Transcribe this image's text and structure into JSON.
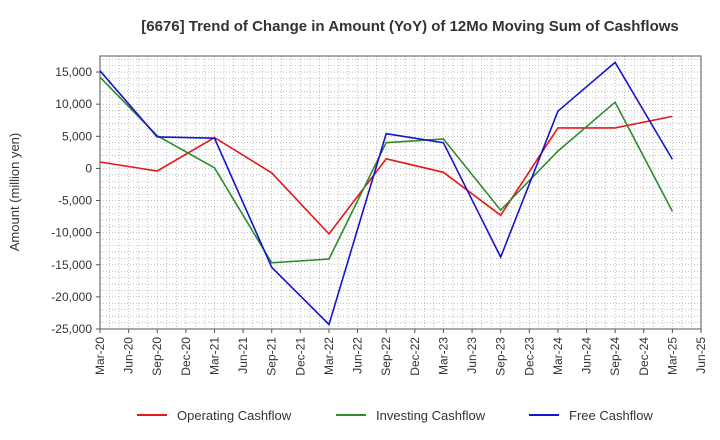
{
  "chart_data": {
    "type": "line",
    "title": "[6676]  Trend of Change in Amount (YoY) of 12Mo Moving Sum of Cashflows",
    "xlabel": "",
    "ylabel": "Amount (million yen)",
    "ylim": [
      -25000,
      17500
    ],
    "yticks": [
      15000,
      10000,
      5000,
      0,
      -5000,
      -10000,
      -15000,
      -20000,
      -25000
    ],
    "ytick_labels": [
      "15,000",
      "10,000",
      "5,000",
      "0",
      "-5,000",
      "-10,000",
      "-15,000",
      "-20,000",
      "-25,000"
    ],
    "x_tick_labels": [
      "Mar-20",
      "Jun-20",
      "Sep-20",
      "Dec-20",
      "Mar-21",
      "Jun-21",
      "Sep-21",
      "Dec-21",
      "Mar-22",
      "Jun-22",
      "Sep-22",
      "Dec-22",
      "Mar-23",
      "Jun-23",
      "Sep-23",
      "Dec-23",
      "Mar-24",
      "Jun-24",
      "Sep-24",
      "Dec-24",
      "Mar-25",
      "Jun-25"
    ],
    "grid": true,
    "legend_position": "bottom",
    "series": [
      {
        "name": "Operating Cashflow",
        "color": "#e31a1c",
        "points": [
          {
            "x": "Mar-20",
            "y": 1000
          },
          {
            "x": "Sep-20",
            "y": -400
          },
          {
            "x": "Mar-21",
            "y": 4800
          },
          {
            "x": "Sep-21",
            "y": -700
          },
          {
            "x": "Mar-22",
            "y": -10200
          },
          {
            "x": "Sep-22",
            "y": 1500
          },
          {
            "x": "Mar-23",
            "y": -600
          },
          {
            "x": "Sep-23",
            "y": -7300
          },
          {
            "x": "Mar-24",
            "y": 6300
          },
          {
            "x": "Sep-24",
            "y": 6300
          },
          {
            "x": "Mar-25",
            "y": 8100
          }
        ]
      },
      {
        "name": "Investing Cashflow",
        "color": "#2e8b2e",
        "points": [
          {
            "x": "Mar-20",
            "y": 14200
          },
          {
            "x": "Sep-20",
            "y": 5100
          },
          {
            "x": "Mar-21",
            "y": 100
          },
          {
            "x": "Sep-21",
            "y": -14700
          },
          {
            "x": "Mar-22",
            "y": -14100
          },
          {
            "x": "Sep-22",
            "y": 4000
          },
          {
            "x": "Mar-23",
            "y": 4600
          },
          {
            "x": "Sep-23",
            "y": -6500
          },
          {
            "x": "Mar-24",
            "y": 2700
          },
          {
            "x": "Sep-24",
            "y": 10300
          },
          {
            "x": "Mar-25",
            "y": -6700
          }
        ]
      },
      {
        "name": "Free Cashflow",
        "color": "#1515cc",
        "points": [
          {
            "x": "Mar-20",
            "y": 15200
          },
          {
            "x": "Sep-20",
            "y": 4900
          },
          {
            "x": "Mar-21",
            "y": 4700
          },
          {
            "x": "Sep-21",
            "y": -15400
          },
          {
            "x": "Mar-22",
            "y": -24300
          },
          {
            "x": "Sep-22",
            "y": 5400
          },
          {
            "x": "Mar-23",
            "y": 4000
          },
          {
            "x": "Sep-23",
            "y": -13800
          },
          {
            "x": "Mar-24",
            "y": 8900
          },
          {
            "x": "Sep-24",
            "y": 16500
          },
          {
            "x": "Mar-25",
            "y": 1400
          }
        ]
      }
    ]
  }
}
